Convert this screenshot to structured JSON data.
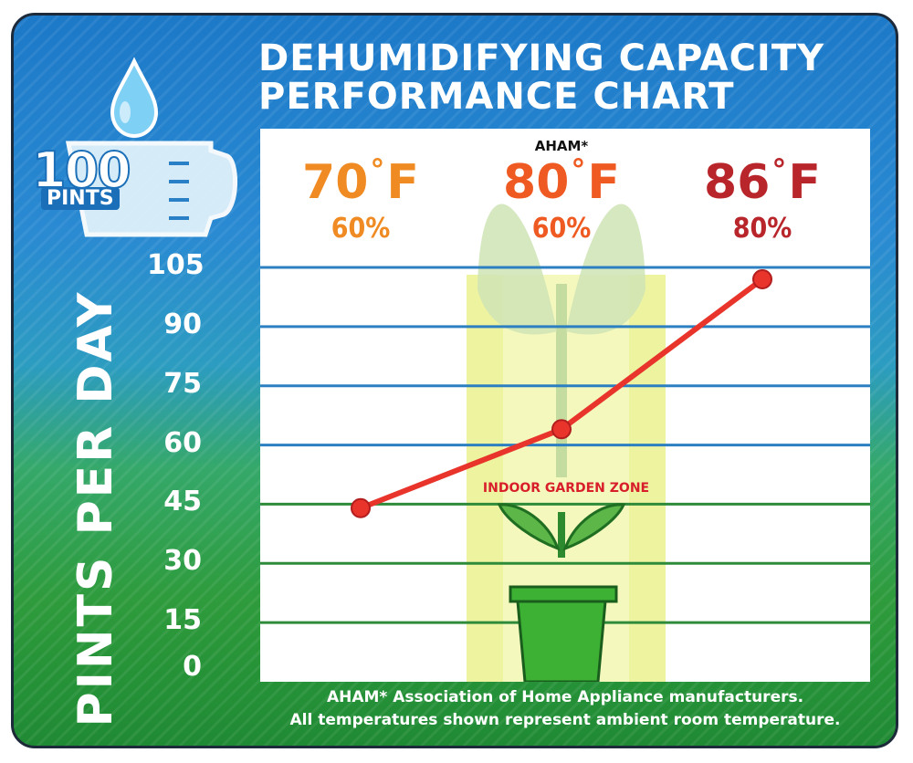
{
  "title": {
    "line1": "DEHUMIDIFYING CAPACITY",
    "line2": "PERFORMANCE CHART"
  },
  "logo": {
    "number": "100",
    "unit": "PINTS",
    "icon": "measuring-cup-with-water-drop-icon"
  },
  "aham_marker": "AHAM*",
  "zone_label": "INDOOR GARDEN ZONE",
  "plant_icon": "potted-plant-icon",
  "footnote": {
    "line1": "AHAM* Association of Home Appliance manufacturers.",
    "line2": "All temperatures shown represent ambient room temperature."
  },
  "colors": {
    "temp70": "#f08a22",
    "temp80": "#ee5a22",
    "temp86": "#b8262b",
    "line": "#e8342b",
    "zone": "#eef3a0",
    "zone_text": "#d81e2b",
    "grid_blue": "#2c7fc0",
    "grid_green": "#2e8b3a"
  },
  "chart_data": {
    "type": "line",
    "ylabel": "PINTS PER DAY",
    "ylim": [
      0,
      105
    ],
    "yticks": [
      "105",
      "90",
      "75",
      "60",
      "45",
      "30",
      "15",
      "0"
    ],
    "conditions": [
      {
        "temp": "70",
        "deg": "°",
        "unit": "F",
        "humidity": "60%"
      },
      {
        "temp": "80",
        "deg": "°",
        "unit": "F",
        "humidity": "60%"
      },
      {
        "temp": "86",
        "deg": "°",
        "unit": "F",
        "humidity": "80%"
      }
    ],
    "x": [
      "70°F 60%",
      "80°F 60%",
      "86°F 80%"
    ],
    "values": [
      44,
      64,
      102
    ],
    "grid": true
  }
}
